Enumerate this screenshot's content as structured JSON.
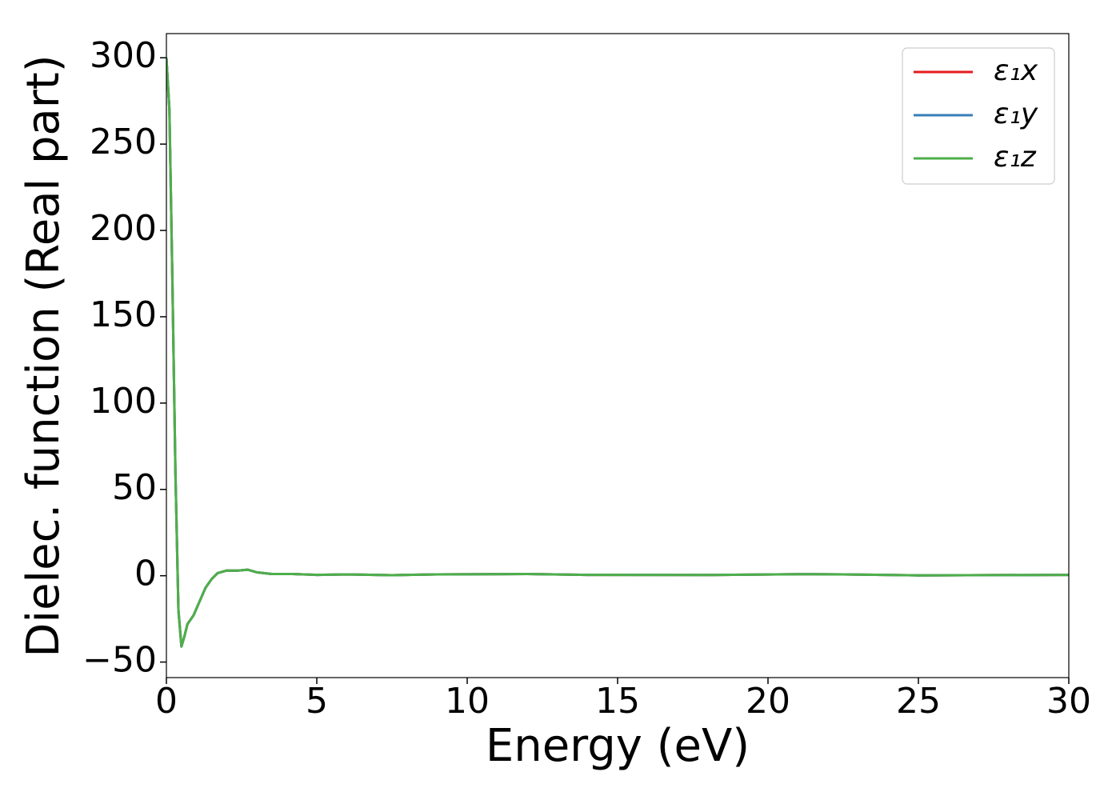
{
  "chart_data": {
    "type": "line",
    "x_label": "Energy (eV)",
    "y_label": "Dielec. function (Real part)",
    "x": [
      0,
      0.1,
      0.2,
      0.3,
      0.4,
      0.5,
      0.6,
      0.7,
      0.9,
      1.1,
      1.3,
      1.5,
      1.7,
      2.0,
      2.4,
      2.7,
      3.0,
      3.5,
      4.2,
      5,
      6,
      7.5,
      9,
      12,
      14,
      18,
      21,
      22.5,
      25,
      30
    ],
    "series": [
      {
        "name": "ε₁x",
        "color": "#e41a1c",
        "values": [
          300,
          270,
          170,
          60,
          -20,
          -41,
          -35,
          -28,
          -23,
          -15,
          -7,
          -2,
          1.5,
          3,
          3,
          3.5,
          2,
          1,
          1,
          0.5,
          0.8,
          0.3,
          0.8,
          1,
          0.5,
          0.4,
          0.9,
          0.8,
          0.2,
          0.5
        ]
      },
      {
        "name": "ε₁y",
        "color": "#377eb8",
        "values": [
          300,
          270,
          170,
          60,
          -20,
          -41,
          -35,
          -28,
          -23,
          -15,
          -7,
          -2,
          1.5,
          3,
          3,
          3.5,
          2,
          1,
          1,
          0.5,
          0.8,
          0.3,
          0.8,
          1,
          0.5,
          0.4,
          0.9,
          0.8,
          0.2,
          0.5
        ]
      },
      {
        "name": "ε₁z",
        "color": "#4daf4a",
        "values": [
          300,
          270,
          170,
          60,
          -20,
          -41,
          -35,
          -28,
          -23,
          -15,
          -7,
          -2,
          1.5,
          3,
          3,
          3.5,
          2,
          1,
          1,
          0.5,
          0.8,
          0.3,
          0.8,
          1,
          0.5,
          0.4,
          0.9,
          0.8,
          0.2,
          0.5
        ]
      }
    ],
    "xlim": [
      0,
      30
    ],
    "xticks": [
      0,
      5,
      10,
      15,
      20,
      25,
      30
    ],
    "ylim": [
      -59,
      314
    ],
    "yticks": [
      {
        "value": -50,
        "label": "−50"
      },
      0,
      50,
      100,
      150,
      200,
      250,
      300
    ],
    "legend": "upper right",
    "grid": false
  }
}
